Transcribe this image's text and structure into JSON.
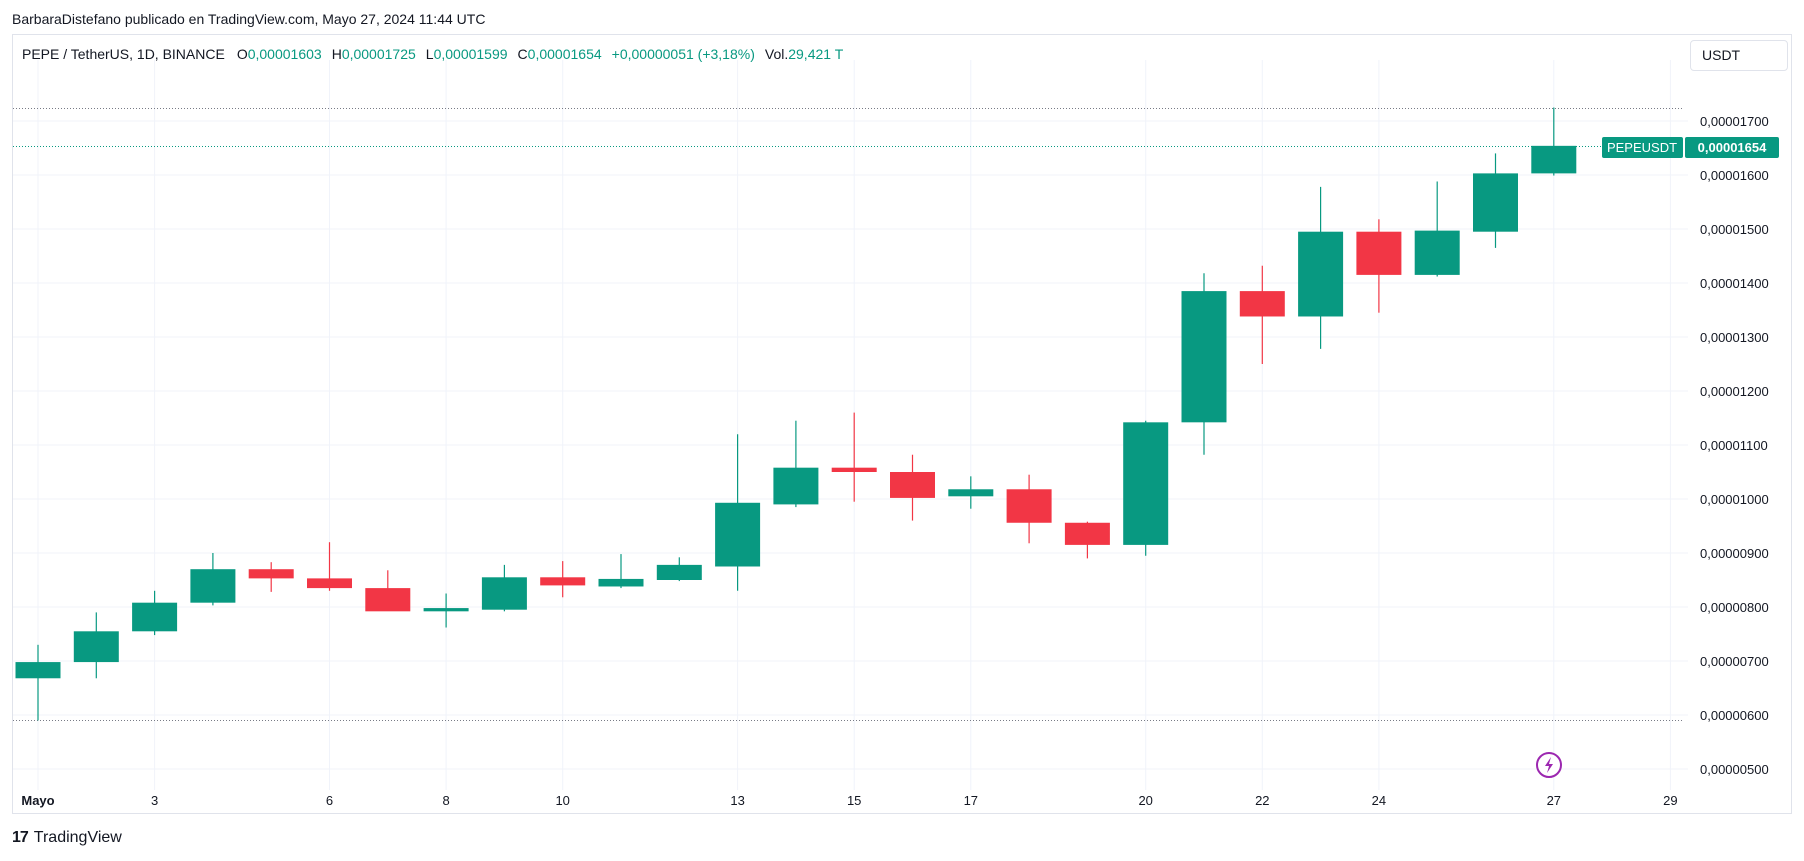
{
  "attribution": "BarbaraDistefano publicado en TradingView.com, Mayo 27, 2024 11:44 UTC",
  "legend": {
    "symbol": "PEPE / TetherUS, 1D, BINANCE",
    "open_label": "O",
    "open_value": "0,00001603",
    "high_label": "H",
    "high_value": "0,00001725",
    "low_label": "L",
    "low_value": "0,00001599",
    "close_label": "C",
    "close_value": "0,00001654",
    "change": "+0,00000051 (+3,18%)",
    "vol_label": "Vol.",
    "vol_value": "29,421 T"
  },
  "currency": "USDT",
  "price_tag": {
    "symbol": "PEPEUSDT",
    "value": "0,00001654"
  },
  "footer": {
    "brand": "TradingView",
    "logo_mark": "17"
  },
  "colors": {
    "up": "#089981",
    "down": "#f23645",
    "grid": "#f0f3fa",
    "text": "#131722",
    "lightning": "#9c27b0"
  },
  "chart_data": {
    "type": "candlestick",
    "y_unit_scale": 1e-08,
    "ylim": [
      4.6e-06,
      1.81e-05
    ],
    "yticks": [
      {
        "value": 5e-06,
        "label": "0,00000500"
      },
      {
        "value": 6e-06,
        "label": "0,00000600"
      },
      {
        "value": 7e-06,
        "label": "0,00000700"
      },
      {
        "value": 8e-06,
        "label": "0,00000800"
      },
      {
        "value": 9e-06,
        "label": "0,00000900"
      },
      {
        "value": 1e-05,
        "label": "0,00001000"
      },
      {
        "value": 1.1e-05,
        "label": "0,00001100"
      },
      {
        "value": 1.2e-05,
        "label": "0,00001200"
      },
      {
        "value": 1.3e-05,
        "label": "0,00001300"
      },
      {
        "value": 1.4e-05,
        "label": "0,00001400"
      },
      {
        "value": 1.5e-05,
        "label": "0,00001500"
      },
      {
        "value": 1.6e-05,
        "label": "0,00001600"
      },
      {
        "value": 1.7e-05,
        "label": "0,00001700"
      }
    ],
    "xticks": [
      {
        "day": 1,
        "label": "Mayo"
      },
      {
        "day": 3,
        "label": "3"
      },
      {
        "day": 6,
        "label": "6"
      },
      {
        "day": 8,
        "label": "8"
      },
      {
        "day": 10,
        "label": "10"
      },
      {
        "day": 13,
        "label": "13"
      },
      {
        "day": 15,
        "label": "15"
      },
      {
        "day": 17,
        "label": "17"
      },
      {
        "day": 20,
        "label": "20"
      },
      {
        "day": 22,
        "label": "22"
      },
      {
        "day": 24,
        "label": "24"
      },
      {
        "day": 27,
        "label": "27"
      },
      {
        "day": 29,
        "label": "29"
      }
    ],
    "x_range_days": [
      1,
      29
    ],
    "high_line": 1.725e-05,
    "low_line": 5.9e-06,
    "last_price": 1.654e-05,
    "candles": [
      {
        "day": 1,
        "o": 6.68e-06,
        "h": 7.3e-06,
        "l": 5.9e-06,
        "c": 6.98e-06
      },
      {
        "day": 2,
        "o": 6.98e-06,
        "h": 7.9e-06,
        "l": 6.68e-06,
        "c": 7.55e-06
      },
      {
        "day": 3,
        "o": 7.55e-06,
        "h": 8.3e-06,
        "l": 7.48e-06,
        "c": 8.08e-06
      },
      {
        "day": 4,
        "o": 8.08e-06,
        "h": 9e-06,
        "l": 8.03e-06,
        "c": 8.7e-06
      },
      {
        "day": 5,
        "o": 8.7e-06,
        "h": 8.83e-06,
        "l": 8.28e-06,
        "c": 8.53e-06
      },
      {
        "day": 6,
        "o": 8.53e-06,
        "h": 9.2e-06,
        "l": 8.3e-06,
        "c": 8.35e-06
      },
      {
        "day": 7,
        "o": 8.35e-06,
        "h": 8.68e-06,
        "l": 7.95e-06,
        "c": 7.92e-06
      },
      {
        "day": 8,
        "o": 7.92e-06,
        "h": 8.25e-06,
        "l": 7.62e-06,
        "c": 7.98e-06
      },
      {
        "day": 9,
        "o": 7.95e-06,
        "h": 8.78e-06,
        "l": 7.92e-06,
        "c": 8.55e-06
      },
      {
        "day": 10,
        "o": 8.55e-06,
        "h": 8.85e-06,
        "l": 8.18e-06,
        "c": 8.4e-06
      },
      {
        "day": 11,
        "o": 8.38e-06,
        "h": 8.98e-06,
        "l": 8.35e-06,
        "c": 8.52e-06
      },
      {
        "day": 12,
        "o": 8.5e-06,
        "h": 8.92e-06,
        "l": 8.48e-06,
        "c": 8.78e-06
      },
      {
        "day": 13,
        "o": 8.75e-06,
        "h": 1.12e-05,
        "l": 8.3e-06,
        "c": 9.93e-06
      },
      {
        "day": 14,
        "o": 9.9e-06,
        "h": 1.145e-05,
        "l": 9.85e-06,
        "c": 1.058e-05
      },
      {
        "day": 15,
        "o": 1.058e-05,
        "h": 1.16e-05,
        "l": 9.95e-06,
        "c": 1.05e-05
      },
      {
        "day": 16,
        "o": 1.05e-05,
        "h": 1.082e-05,
        "l": 9.6e-06,
        "c": 1.002e-05
      },
      {
        "day": 17,
        "o": 1.005e-05,
        "h": 1.042e-05,
        "l": 9.82e-06,
        "c": 1.018e-05
      },
      {
        "day": 18,
        "o": 1.018e-05,
        "h": 1.045e-05,
        "l": 9.18e-06,
        "c": 9.56e-06
      },
      {
        "day": 19,
        "o": 9.56e-06,
        "h": 9.58e-06,
        "l": 8.9e-06,
        "c": 9.15e-06
      },
      {
        "day": 20,
        "o": 9.15e-06,
        "h": 1.145e-05,
        "l": 8.95e-06,
        "c": 1.142e-05
      },
      {
        "day": 21,
        "o": 1.142e-05,
        "h": 1.418e-05,
        "l": 1.082e-05,
        "c": 1.385e-05
      },
      {
        "day": 22,
        "o": 1.385e-05,
        "h": 1.432e-05,
        "l": 1.25e-05,
        "c": 1.338e-05
      },
      {
        "day": 23,
        "o": 1.338e-05,
        "h": 1.578e-05,
        "l": 1.278e-05,
        "c": 1.495e-05
      },
      {
        "day": 24,
        "o": 1.495e-05,
        "h": 1.518e-05,
        "l": 1.345e-05,
        "c": 1.415e-05
      },
      {
        "day": 25,
        "o": 1.415e-05,
        "h": 1.588e-05,
        "l": 1.412e-05,
        "c": 1.497e-05
      },
      {
        "day": 26,
        "o": 1.495e-05,
        "h": 1.64e-05,
        "l": 1.465e-05,
        "c": 1.603e-05
      },
      {
        "day": 27,
        "o": 1.603e-05,
        "h": 1.725e-05,
        "l": 1.599e-05,
        "c": 1.654e-05
      }
    ]
  }
}
